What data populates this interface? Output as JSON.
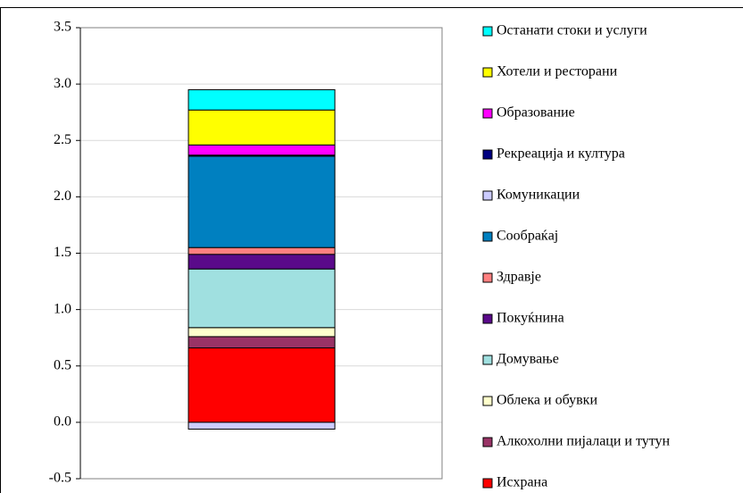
{
  "chart_data": {
    "type": "stacked_bar",
    "categories": [
      null
    ],
    "ylim": [
      -0.5,
      3.5
    ],
    "yticks": [
      {
        "value": -0.5,
        "label": "-0.5"
      },
      {
        "value": 0,
        "label": "0.0"
      },
      {
        "value": 0.5,
        "label": "0.5"
      },
      {
        "value": 1,
        "label": "1.0"
      },
      {
        "value": 1.5,
        "label": "1.5"
      },
      {
        "value": 2,
        "label": "2.0"
      },
      {
        "value": 2.5,
        "label": "2.5"
      },
      {
        "value": 3,
        "label": "3.0"
      },
      {
        "value": 3.5,
        "label": "3.5"
      }
    ],
    "grid": true,
    "legend": "right",
    "series": [
      {
        "name": "Исхрана",
        "color": "#ff0000",
        "values": [
          0.66
        ]
      },
      {
        "name": "Алкохолни пијалаци и тутун",
        "color": "#993366",
        "values": [
          0.1
        ]
      },
      {
        "name": "Облека и обувки",
        "color": "#ffffcc",
        "values": [
          0.08
        ]
      },
      {
        "name": "Домување",
        "color": "#a0e0e0",
        "values": [
          0.52
        ]
      },
      {
        "name": "Покуќнина",
        "color": "#5a0a8a",
        "values": [
          0.13
        ]
      },
      {
        "name": "Здравје",
        "color": "#ff8080",
        "values": [
          0.06
        ]
      },
      {
        "name": "Сообраќај",
        "color": "#0080c0",
        "values": [
          0.81
        ]
      },
      {
        "name": "Комуникации",
        "color": "#ccccff",
        "values": [
          -0.06
        ]
      },
      {
        "name": "Рекреација и култура",
        "color": "#000080",
        "values": [
          0.01
        ]
      },
      {
        "name": "Образование",
        "color": "#ff00ff",
        "values": [
          0.09
        ]
      },
      {
        "name": "Хотели и ресторани",
        "color": "#ffff00",
        "values": [
          0.31
        ]
      },
      {
        "name": "Останати стоки и услуги",
        "color": "#00ffff",
        "values": [
          0.18
        ]
      }
    ]
  }
}
